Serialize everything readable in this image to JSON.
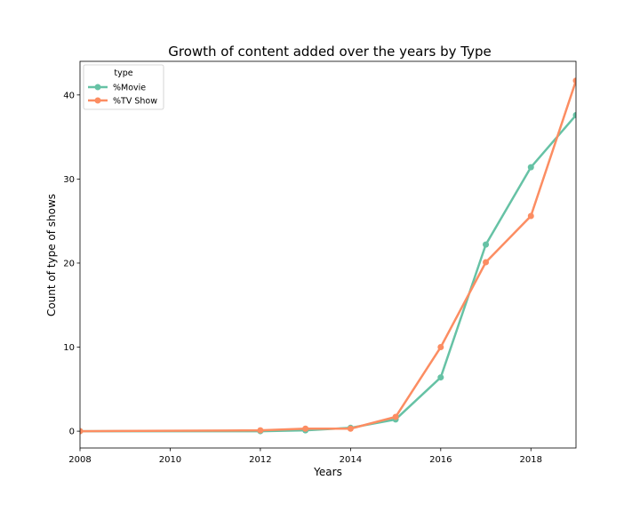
{
  "chart_data": {
    "type": "line",
    "title": "Growth of content added over the years by Type",
    "xlabel": "Years",
    "ylabel": "Count of type of shows",
    "xlim": [
      2008,
      2019
    ],
    "ylim": [
      -2,
      44
    ],
    "xticks": [
      "2008",
      "2010",
      "2012",
      "2014",
      "2016",
      "2018"
    ],
    "yticks": [
      "0",
      "10",
      "20",
      "30",
      "40"
    ],
    "grid": false,
    "legend": {
      "title": "type",
      "position": "top-left",
      "entries": [
        "%Movie",
        "%TV Show"
      ]
    },
    "series": [
      {
        "name": "%Movie",
        "color": "#66c2a5",
        "x": [
          2008,
          2012,
          2013,
          2014,
          2015,
          2016,
          2017,
          2018,
          2019
        ],
        "y": [
          0.0,
          0.0,
          0.1,
          0.4,
          1.4,
          6.4,
          22.2,
          31.4,
          37.6
        ]
      },
      {
        "name": "%TV Show",
        "color": "#fc8d62",
        "x": [
          2008,
          2012,
          2013,
          2014,
          2015,
          2016,
          2017,
          2018,
          2019
        ],
        "y": [
          0.0,
          0.1,
          0.3,
          0.3,
          1.7,
          10.0,
          20.1,
          25.6,
          41.7
        ]
      }
    ]
  }
}
